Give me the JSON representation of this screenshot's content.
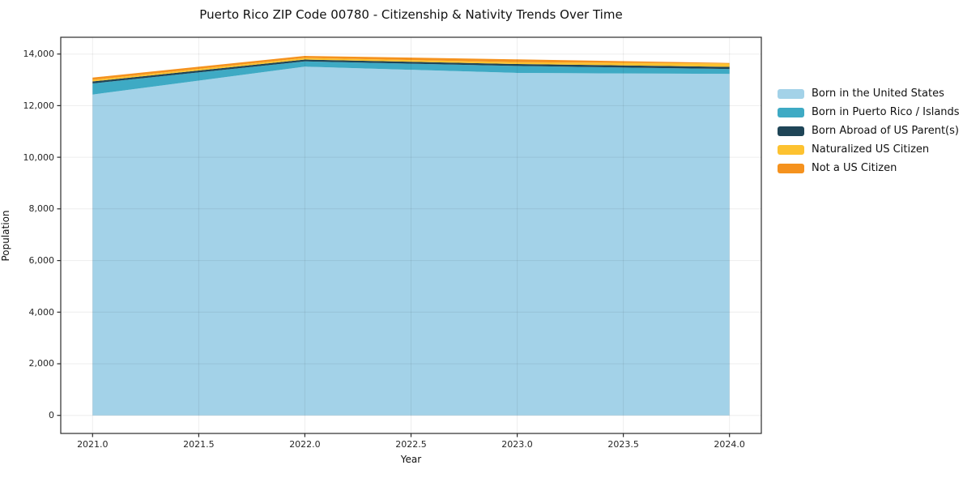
{
  "chart_data": {
    "type": "area",
    "stacked": true,
    "title": "Puerto Rico ZIP Code 00780 - Citizenship & Nativity Trends Over Time",
    "xlabel": "Year",
    "ylabel": "Population",
    "x": [
      2021,
      2022,
      2023,
      2024
    ],
    "series": [
      {
        "name": "Born in the United States",
        "color": "#a3d2e8",
        "values": [
          12430,
          13510,
          13270,
          13230
        ]
      },
      {
        "name": "Born in Puerto Rico / Islands",
        "color": "#3eaac4",
        "values": [
          430,
          205,
          270,
          190
        ]
      },
      {
        "name": "Born Abroad of US Parent(s)",
        "color": "#1f4557",
        "values": [
          80,
          72,
          75,
          85
        ]
      },
      {
        "name": "Naturalized US Citizen",
        "color": "#fdc230",
        "values": [
          63,
          63,
          72,
          125
        ]
      },
      {
        "name": "Not a US Citizen",
        "color": "#f5921e",
        "values": [
          85,
          78,
          105,
          25
        ]
      }
    ],
    "x_ticks": [
      2021.0,
      2021.5,
      2022.0,
      2022.5,
      2023.0,
      2023.5,
      2024.0
    ],
    "x_tick_labels": [
      "2021.0",
      "2021.5",
      "2022.0",
      "2022.5",
      "2023.0",
      "2023.5",
      "2024.0"
    ],
    "y_ticks": [
      0,
      2000,
      4000,
      6000,
      8000,
      10000,
      12000,
      14000
    ],
    "y_tick_labels": [
      "0",
      "2,000",
      "4,000",
      "6,000",
      "8,000",
      "10,000",
      "12,000",
      "14,000"
    ],
    "xlim": [
      2020.85,
      2024.15
    ],
    "ylim": [
      -700,
      14650
    ],
    "grid": true,
    "grid_color": "rgba(0,0,0,0.07)",
    "frame_color": "#2b2b2b",
    "legend_position": "right"
  }
}
